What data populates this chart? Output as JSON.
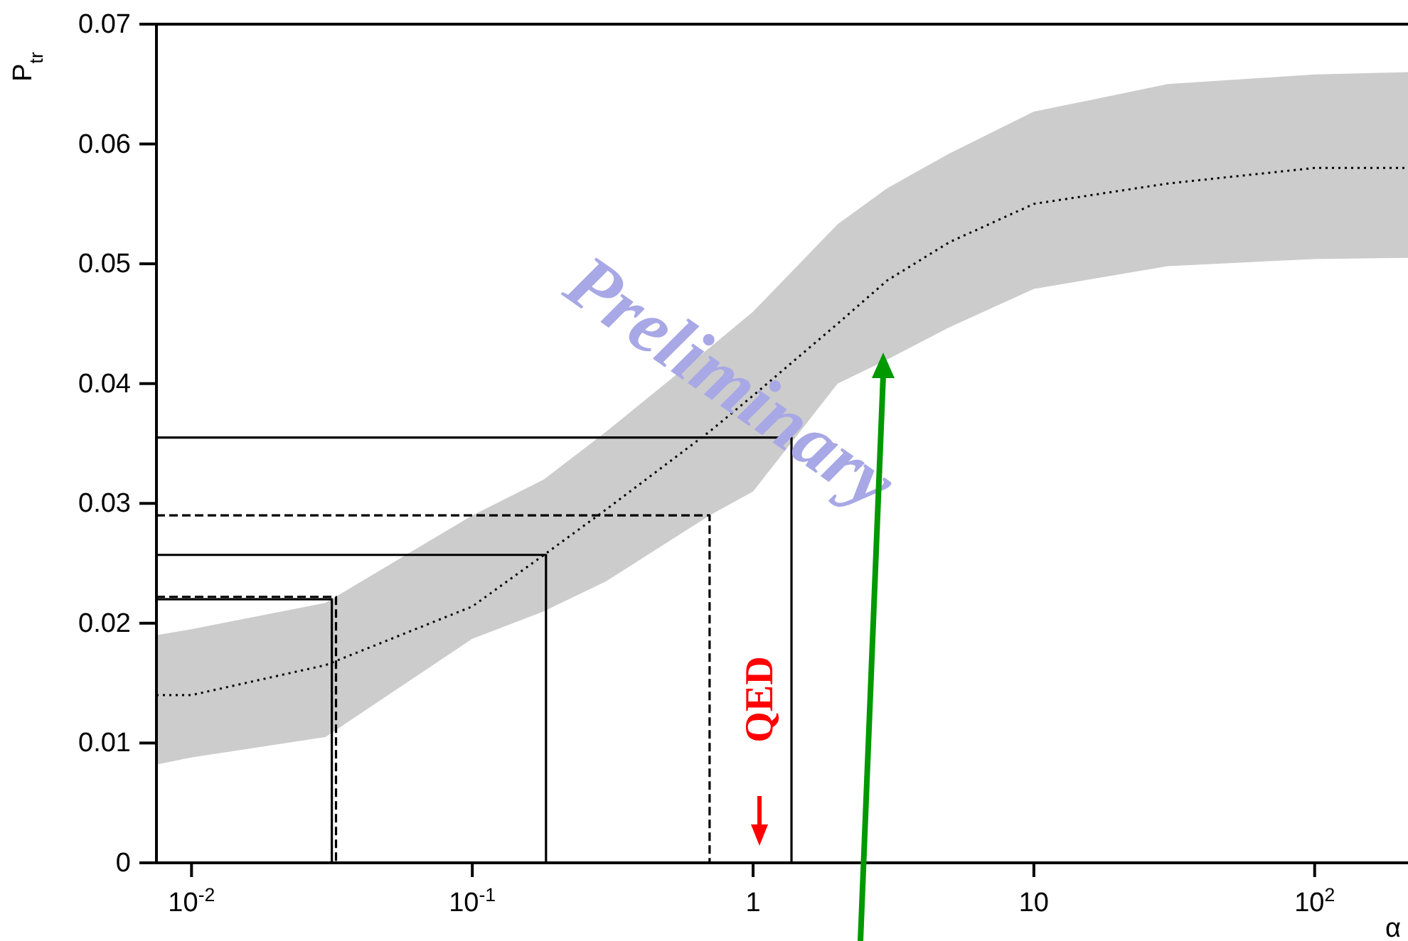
{
  "chart_data": {
    "type": "line",
    "xlabel": "α",
    "ylabel": "P$_{tr}$",
    "log": "x",
    "grid": false,
    "legend": false,
    "marker": "none",
    "xlim": [
      0.0075,
      215
    ],
    "ylim": [
      0,
      0.07
    ],
    "xticks": [
      {
        "value": 0.01,
        "label": "10$^{-2}$"
      },
      {
        "value": 0.1,
        "label": "10$^{-1}$"
      },
      1,
      10,
      {
        "value": 100,
        "label": "10$^{2}$"
      }
    ],
    "yticks": [
      0,
      0.01,
      0.02,
      0.03,
      0.04,
      0.05,
      0.06,
      0.07
    ],
    "annotations": [
      "Preliminary",
      "QED"
    ],
    "series": [
      {
        "color": "#000000",
        "line_style": "dotted",
        "x": [
          0.0075,
          0.01,
          0.03,
          0.1,
          0.18,
          0.3,
          0.7,
          1,
          2,
          3,
          5,
          10,
          30,
          100,
          215
        ],
        "values": [
          0.014,
          0.014,
          0.0165,
          0.0214,
          0.0257,
          0.0295,
          0.036,
          0.039,
          0.045,
          0.0486,
          0.0518,
          0.055,
          0.0567,
          0.058,
          0.058
        ],
        "lower": [
          0.0082,
          0.0088,
          0.0105,
          0.0187,
          0.021,
          0.0235,
          0.029,
          0.031,
          0.04,
          0.042,
          0.0447,
          0.0479,
          0.0498,
          0.0504,
          0.0505
        ],
        "upper": [
          0.019,
          0.0195,
          0.0217,
          0.029,
          0.032,
          0.036,
          0.043,
          0.046,
          0.0533,
          0.0563,
          0.0592,
          0.0627,
          0.065,
          0.0658,
          0.066
        ]
      },
      {
        "color": "#000000",
        "line_style": "solid",
        "x": [
          0.0075,
          1.37,
          1.37
        ],
        "values": [
          0.0355,
          0.0355,
          0
        ]
      },
      {
        "color": "#000000",
        "line_style": "dashed",
        "x": [
          0.0075,
          0.7,
          0.7
        ],
        "values": [
          0.029,
          0.029,
          0
        ]
      },
      {
        "color": "#000000",
        "line_style": "solid",
        "x": [
          0.0075,
          0.183,
          0.183
        ],
        "values": [
          0.0257,
          0.0257,
          0
        ]
      },
      {
        "color": "#000000",
        "line_style": "solid",
        "x": [
          0.0075,
          0.0316,
          0.0316
        ],
        "values": [
          0.022,
          0.022,
          0
        ]
      },
      {
        "color": "#000000",
        "line_style": "dashed",
        "x": [
          0.0075,
          0.0327,
          0.0327
        ],
        "values": [
          0.0222,
          0.0222,
          0
        ]
      }
    ]
  }
}
